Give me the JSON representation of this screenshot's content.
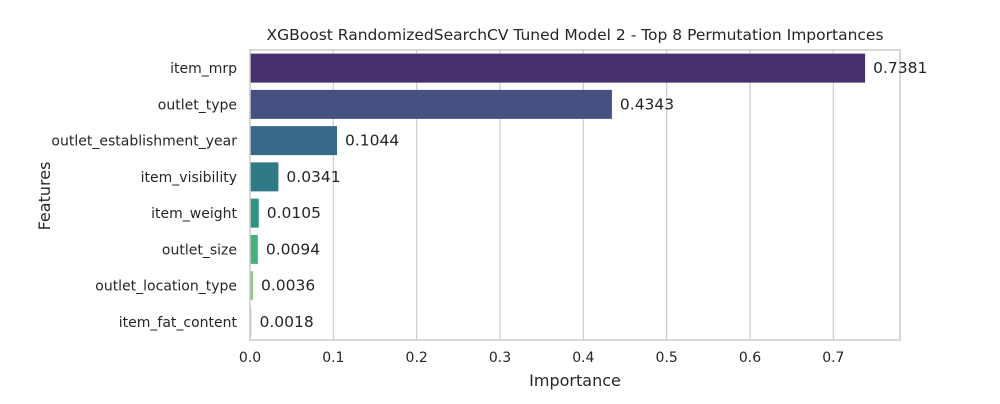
{
  "chart_data": {
    "type": "bar",
    "orientation": "horizontal",
    "title": "XGBoost RandomizedSearchCV Tuned Model 2 - Top 8 Permutation Importances",
    "xlabel": "Importance",
    "ylabel": "Features",
    "categories": [
      "item_mrp",
      "outlet_type",
      "outlet_establishment_year",
      "item_visibility",
      "item_weight",
      "outlet_size",
      "outlet_location_type",
      "item_fat_content"
    ],
    "values": [
      0.7381,
      0.4343,
      0.1044,
      0.0341,
      0.0105,
      0.0094,
      0.0036,
      0.0018
    ],
    "value_labels": [
      "0.7381",
      "0.4343",
      "0.1044",
      "0.0341",
      "0.0105",
      "0.0094",
      "0.0036",
      "0.0018"
    ],
    "xlim": [
      0,
      0.78
    ],
    "xticks": [
      0.0,
      0.1,
      0.2,
      0.3,
      0.4,
      0.5,
      0.6,
      0.7
    ],
    "xtick_labels": [
      "0.0",
      "0.1",
      "0.2",
      "0.3",
      "0.4",
      "0.5",
      "0.6",
      "0.7"
    ],
    "grid": true,
    "colors": [
      "#472d7b",
      "#3b528b",
      "#2c728e",
      "#21918c",
      "#28ae80",
      "#5ec962",
      "#addc30",
      "#d5e21a"
    ],
    "bar_colors": [
      "#482f6e",
      "#465083",
      "#38688a",
      "#2e7a86",
      "#2c9483",
      "#43b27c",
      "#8fc979",
      "#cfde9c"
    ],
    "grid_color": "#cccccc",
    "frame_color": "#cccccc"
  }
}
